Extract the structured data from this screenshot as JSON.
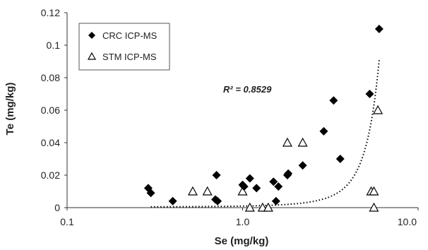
{
  "chart_data": {
    "type": "scatter",
    "xlabel": "Se (mg/kg)",
    "ylabel": "Te (mg/kg)",
    "x_scale": "log",
    "xlim": [
      0.1,
      10.0
    ],
    "ylim": [
      0,
      0.12
    ],
    "x_ticks": [
      "0.1",
      "1.0",
      "10.0"
    ],
    "y_ticks": [
      "0",
      "0.02",
      "0.04",
      "0.06",
      "0.08",
      "0.1",
      "0.12"
    ],
    "grid": false,
    "legend_position": "top-left",
    "series": [
      {
        "name": "CRC ICP-MS",
        "marker": "filled-diamond",
        "color": "#000000",
        "points": [
          [
            0.29,
            0.012
          ],
          [
            0.3,
            0.009
          ],
          [
            0.4,
            0.004
          ],
          [
            0.7,
            0.005
          ],
          [
            0.71,
            0.02
          ],
          [
            0.72,
            0.004
          ],
          [
            1.0,
            0.014
          ],
          [
            1.02,
            0.013
          ],
          [
            1.1,
            0.018
          ],
          [
            1.2,
            0.012
          ],
          [
            1.5,
            0.016
          ],
          [
            1.55,
            0.004
          ],
          [
            1.6,
            0.013
          ],
          [
            1.8,
            0.02
          ],
          [
            1.82,
            0.021
          ],
          [
            2.2,
            0.026
          ],
          [
            2.9,
            0.047
          ],
          [
            3.3,
            0.066
          ],
          [
            3.6,
            0.03
          ],
          [
            5.3,
            0.07
          ],
          [
            6.0,
            0.11
          ]
        ]
      },
      {
        "name": "STM ICP-MS",
        "marker": "open-triangle",
        "color": "#000000",
        "points": [
          [
            0.52,
            0.01
          ],
          [
            0.63,
            0.01
          ],
          [
            1.0,
            0.01
          ],
          [
            1.1,
            0.0
          ],
          [
            1.3,
            0.0
          ],
          [
            1.4,
            0.0
          ],
          [
            1.8,
            0.04
          ],
          [
            2.2,
            0.04
          ],
          [
            5.4,
            0.01
          ],
          [
            5.6,
            0.01
          ],
          [
            5.6,
            0.0
          ],
          [
            5.9,
            0.06
          ]
        ]
      }
    ],
    "trendline": {
      "style": "dotted",
      "type": "exponential",
      "x_range": [
        0.3,
        6.0
      ],
      "y_at_start": 0.0,
      "y_at_end": 0.091
    },
    "annotation": "R² = 0.8529"
  }
}
